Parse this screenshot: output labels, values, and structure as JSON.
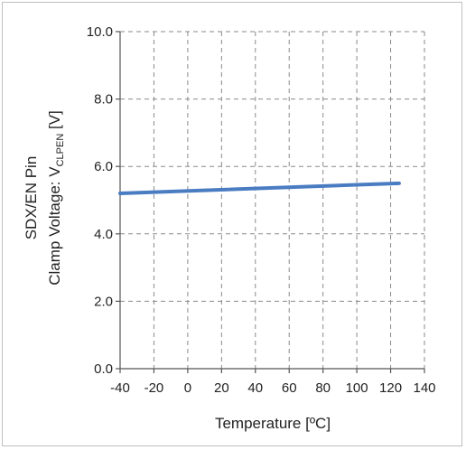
{
  "chart_data": {
    "type": "line",
    "xlabel": "Temperature [ºC]",
    "ylabel_line1": "SDX/EN Pin",
    "ylabel_line2_prefix": "Clamp Voltage: V",
    "ylabel_subscript": "CLPEN",
    "ylabel_unit": " [V]",
    "xlim": [
      -40,
      140
    ],
    "ylim": [
      0.0,
      10.0
    ],
    "x_ticks": [
      -40,
      -20,
      0,
      20,
      40,
      60,
      80,
      100,
      120,
      140
    ],
    "x_tick_labels": [
      "-40",
      "-20",
      "0",
      "20",
      "40",
      "60",
      "80",
      "100",
      "120",
      "140"
    ],
    "y_ticks": [
      0,
      2,
      4,
      6,
      8,
      10
    ],
    "y_tick_labels": [
      "0.0",
      "2.0",
      "4.0",
      "6.0",
      "8.0",
      "10.0"
    ],
    "grid": true,
    "series": [
      {
        "x": [
          -40,
          125
        ],
        "y": [
          5.2,
          5.5
        ],
        "color": "#4a7cc2"
      }
    ]
  }
}
